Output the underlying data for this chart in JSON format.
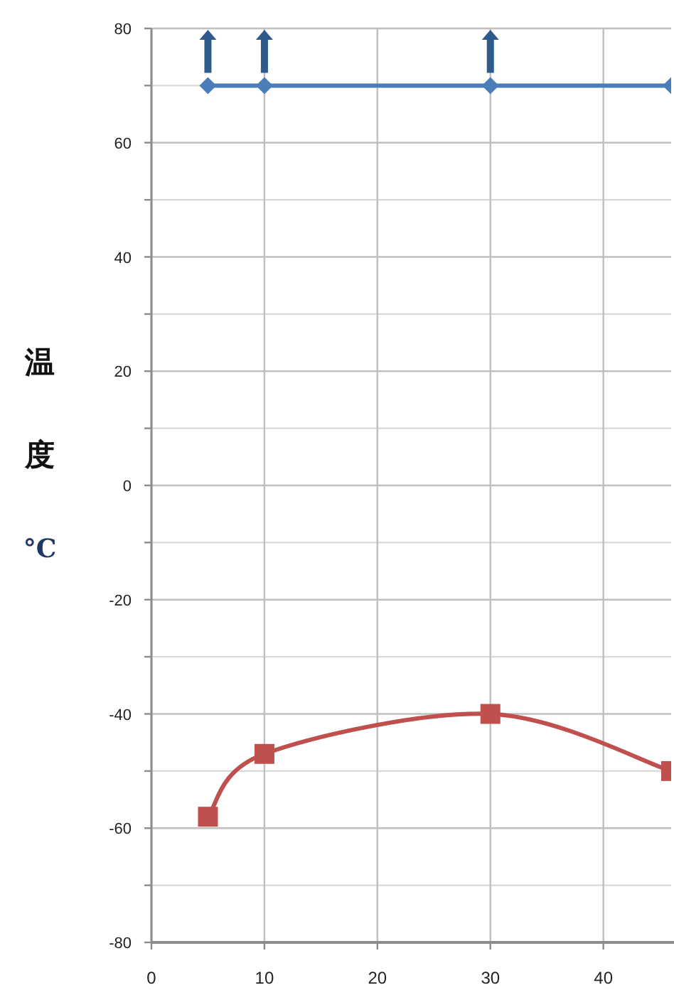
{
  "chart_data": {
    "type": "line",
    "ylabel": "温度°C",
    "xlim": [
      0,
      46
    ],
    "xticks": [
      0,
      10,
      20,
      30,
      40
    ],
    "ylim": [
      -80,
      80
    ],
    "yticks": [
      -80,
      {
        "value": -70,
        "label": null
      },
      -60,
      {
        "value": -50,
        "label": null
      },
      -40,
      {
        "value": -30,
        "label": null
      },
      -20,
      {
        "value": -10,
        "label": null
      },
      0,
      {
        "value": 10,
        "label": null
      },
      20,
      {
        "value": 30,
        "label": null
      },
      40,
      {
        "value": 50,
        "label": null
      },
      60,
      {
        "value": 70,
        "label": null
      },
      80
    ],
    "grid": true,
    "series": [
      {
        "color": "#4a7ebb",
        "marker": "diamond",
        "x": [
          5,
          10,
          30,
          46
        ],
        "values": [
          70,
          70,
          70,
          70
        ]
      },
      {
        "color": "#c0504d",
        "marker": "square",
        "x": [
          5,
          10,
          30,
          46
        ],
        "values": [
          -58,
          -47,
          -40,
          -50
        ]
      }
    ]
  }
}
